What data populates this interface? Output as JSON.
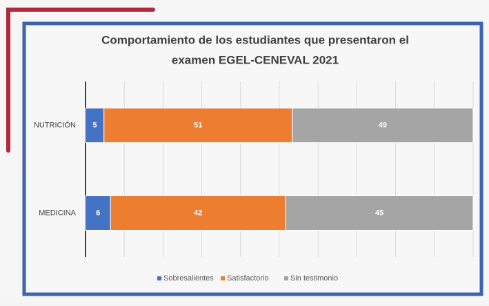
{
  "chart_data": {
    "type": "bar100",
    "title": [
      "Comportamiento de los estudiantes que presentaron el",
      "examen EGEL-CENEVAL 2021"
    ],
    "categories": [
      "NUTRICIÓN",
      "MEDICINA"
    ],
    "series": [
      {
        "name": "Sobresalientes",
        "color": "#4472c4",
        "values": [
          5,
          6
        ]
      },
      {
        "name": "Satisfactorio",
        "color": "#ed7d31",
        "values": [
          51,
          42
        ]
      },
      {
        "name": "Sin testimonio",
        "color": "#a5a5a5",
        "values": [
          49,
          45
        ]
      }
    ],
    "xlim": [
      0,
      100
    ],
    "xticks": [
      0,
      10,
      20,
      30,
      40,
      50,
      60,
      70,
      80,
      90,
      100
    ],
    "grid": true,
    "legend": "bottom"
  }
}
